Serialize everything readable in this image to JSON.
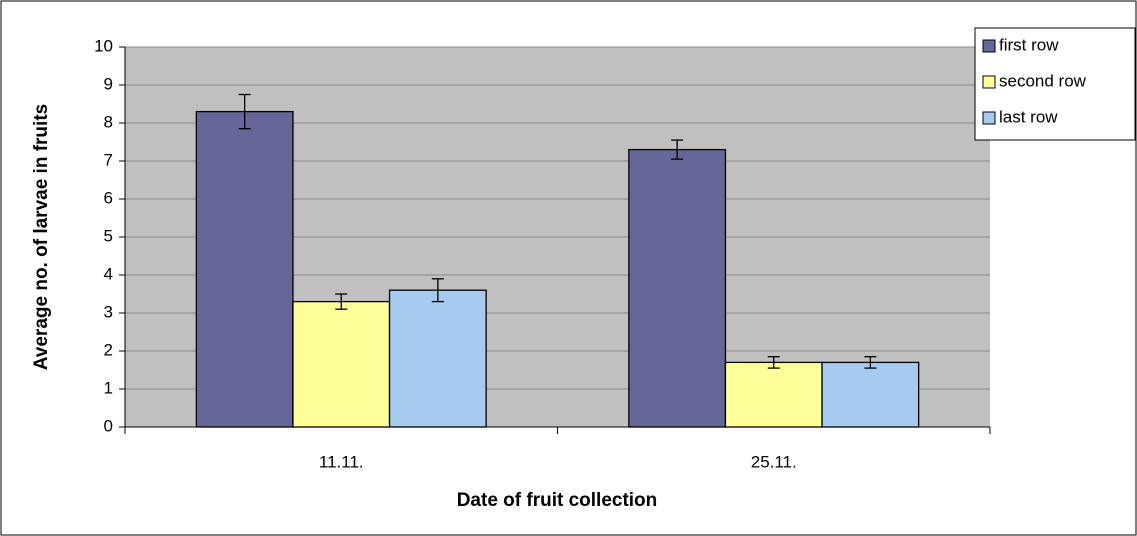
{
  "chart_data": {
    "type": "bar",
    "xlabel": "Date of fruit collection",
    "ylabel": "Average no. of larvae in fruits",
    "categories": [
      "11.11.",
      "25.11."
    ],
    "series": [
      {
        "name": "first row",
        "color": "#666699",
        "values": [
          8.3,
          7.3
        ],
        "errors": [
          0.45,
          0.25
        ]
      },
      {
        "name": "second row",
        "color": "#ffff99",
        "values": [
          3.3,
          1.7
        ],
        "errors": [
          0.2,
          0.15
        ]
      },
      {
        "name": "last row",
        "color": "#a6caf0",
        "values": [
          3.6,
          1.7
        ],
        "errors": [
          0.3,
          0.15
        ]
      }
    ],
    "ylim": [
      0,
      10
    ],
    "yticks": [
      0,
      1,
      2,
      3,
      4,
      5,
      6,
      7,
      8,
      9,
      10
    ],
    "grid": true,
    "legend": "upper right"
  }
}
